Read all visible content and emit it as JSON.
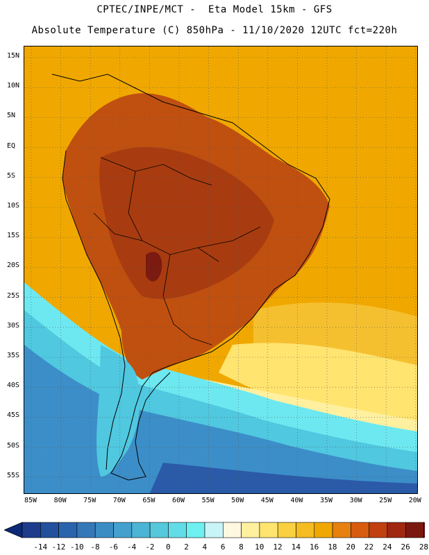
{
  "header": {
    "title_line1": "CPTEC/INPE/MCT -  Eta Model 15km - GFS",
    "title_line2": "Absolute Temperature (C) 850hPa - 11/10/2020 12UTC fct=220h"
  },
  "map": {
    "lat_labels": [
      "15N",
      "10N",
      "5N",
      "EQ",
      "5S",
      "10S",
      "15S",
      "20S",
      "25S",
      "30S",
      "35S",
      "40S",
      "45S",
      "50S",
      "55S"
    ],
    "lon_labels": [
      "85W",
      "80W",
      "75W",
      "70W",
      "65W",
      "60W",
      "55W",
      "50W",
      "45W",
      "40W",
      "35W",
      "30W",
      "25W",
      "20W"
    ],
    "colors": {
      "ocean_warm": "#f0a800",
      "ocean_mid": "#f5c030",
      "land_hot": "#c05010",
      "land_hotter": "#a83c10",
      "land_hottest": "#7a1a10",
      "cold_deep": "#2a5aa8",
      "cold_mid": "#3c8ec8",
      "cold_light": "#50c8e0",
      "cold_lightest": "#6ee8f0",
      "coast": "#000000"
    }
  },
  "colorbar": {
    "labels": [
      "-14",
      "-12",
      "-10",
      "-8",
      "-6",
      "-4",
      "-2",
      "0",
      "2",
      "4",
      "6",
      "8",
      "10",
      "12",
      "14",
      "16",
      "18",
      "20",
      "22",
      "24",
      "26",
      "28"
    ],
    "colors": [
      "#1e3c8c",
      "#22509c",
      "#2a64ac",
      "#3478b8",
      "#3c8cc4",
      "#44a0cc",
      "#4cb4d4",
      "#56c8dc",
      "#62dce6",
      "#6ef0f0",
      "#c8f4f8",
      "#fff8e0",
      "#fff0a0",
      "#ffe470",
      "#f8d040",
      "#f4bc20",
      "#f0a800",
      "#e88010",
      "#d85c10",
      "#c04010",
      "#a02810",
      "#7a1810"
    ],
    "low_arrow_color": "#0c2a78",
    "high_arrow_color": "#6a0820"
  }
}
